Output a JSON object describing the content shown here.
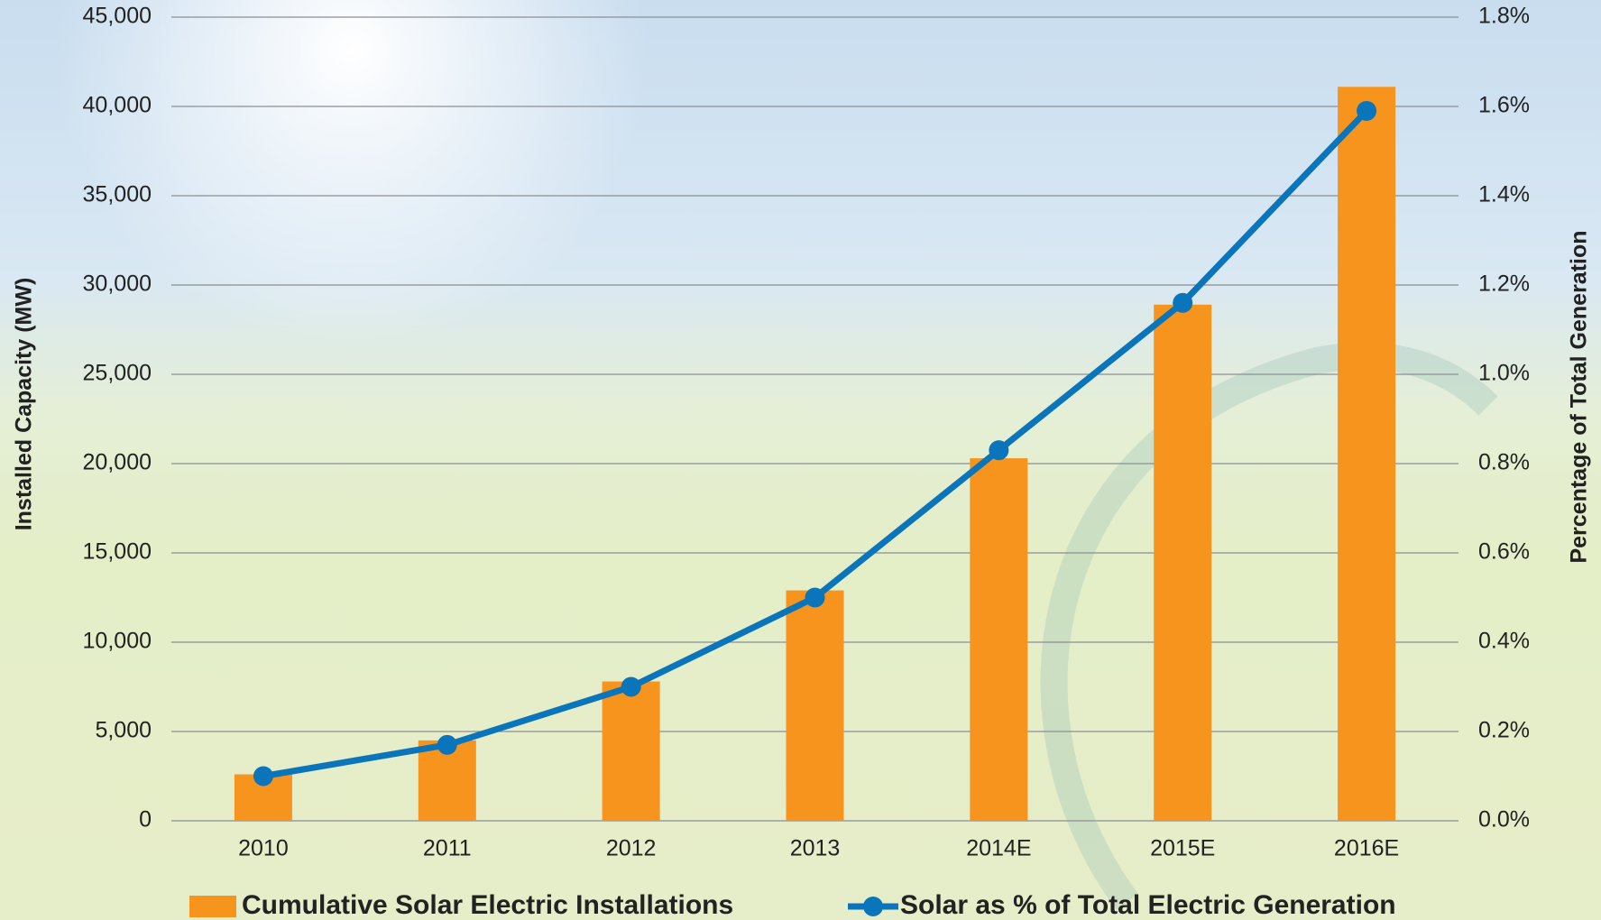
{
  "chart_data": {
    "type": "bar",
    "categories": [
      "2010",
      "2011",
      "2012",
      "2013",
      "2014E",
      "2015E",
      "2016E"
    ],
    "y_label": "Installed Capacity (MW)",
    "y2_label": "Percentage of Total Generation",
    "ylim": [
      0,
      45000
    ],
    "yticks": [
      0,
      {
        "value": 5000,
        "label": "5,000"
      },
      {
        "value": 10000,
        "label": "10,000"
      },
      {
        "value": 15000,
        "label": "15,000"
      },
      {
        "value": 20000,
        "label": "20,000"
      },
      {
        "value": 25000,
        "label": "25,000"
      },
      {
        "value": 30000,
        "label": "30,000"
      },
      {
        "value": 35000,
        "label": "35,000"
      },
      {
        "value": 40000,
        "label": "40,000"
      },
      {
        "value": 45000,
        "label": "45,000"
      }
    ],
    "y2lim": [
      0,
      1.8
    ],
    "y2ticks": [
      {
        "value": 0,
        "label": "0.0%"
      },
      {
        "value": 0.2,
        "label": "0.2%"
      },
      {
        "value": 0.4,
        "label": "0.4%"
      },
      {
        "value": 0.6,
        "label": "0.6%"
      },
      {
        "value": 0.8,
        "label": "0.8%"
      },
      {
        "value": 1.0,
        "label": "1.0%"
      },
      {
        "value": 1.2,
        "label": "1.2%"
      },
      {
        "value": 1.4,
        "label": "1.4%"
      },
      {
        "value": 1.6,
        "label": "1.6%"
      },
      {
        "value": 1.8,
        "label": "1.8%"
      }
    ],
    "grid": true,
    "series": [
      {
        "name": "Cumulative Solar Electric Installations",
        "type": "bar",
        "color": "#f7941d",
        "values": [
          2600,
          4500,
          7800,
          12900,
          20300,
          28900,
          41100
        ]
      },
      {
        "name": "Solar as % of Total Electric Generation",
        "type": "line",
        "axis": "y2",
        "color": "#0b75bb",
        "values": [
          0.1,
          0.17,
          0.3,
          0.5,
          0.83,
          1.16,
          1.59
        ]
      }
    ]
  }
}
